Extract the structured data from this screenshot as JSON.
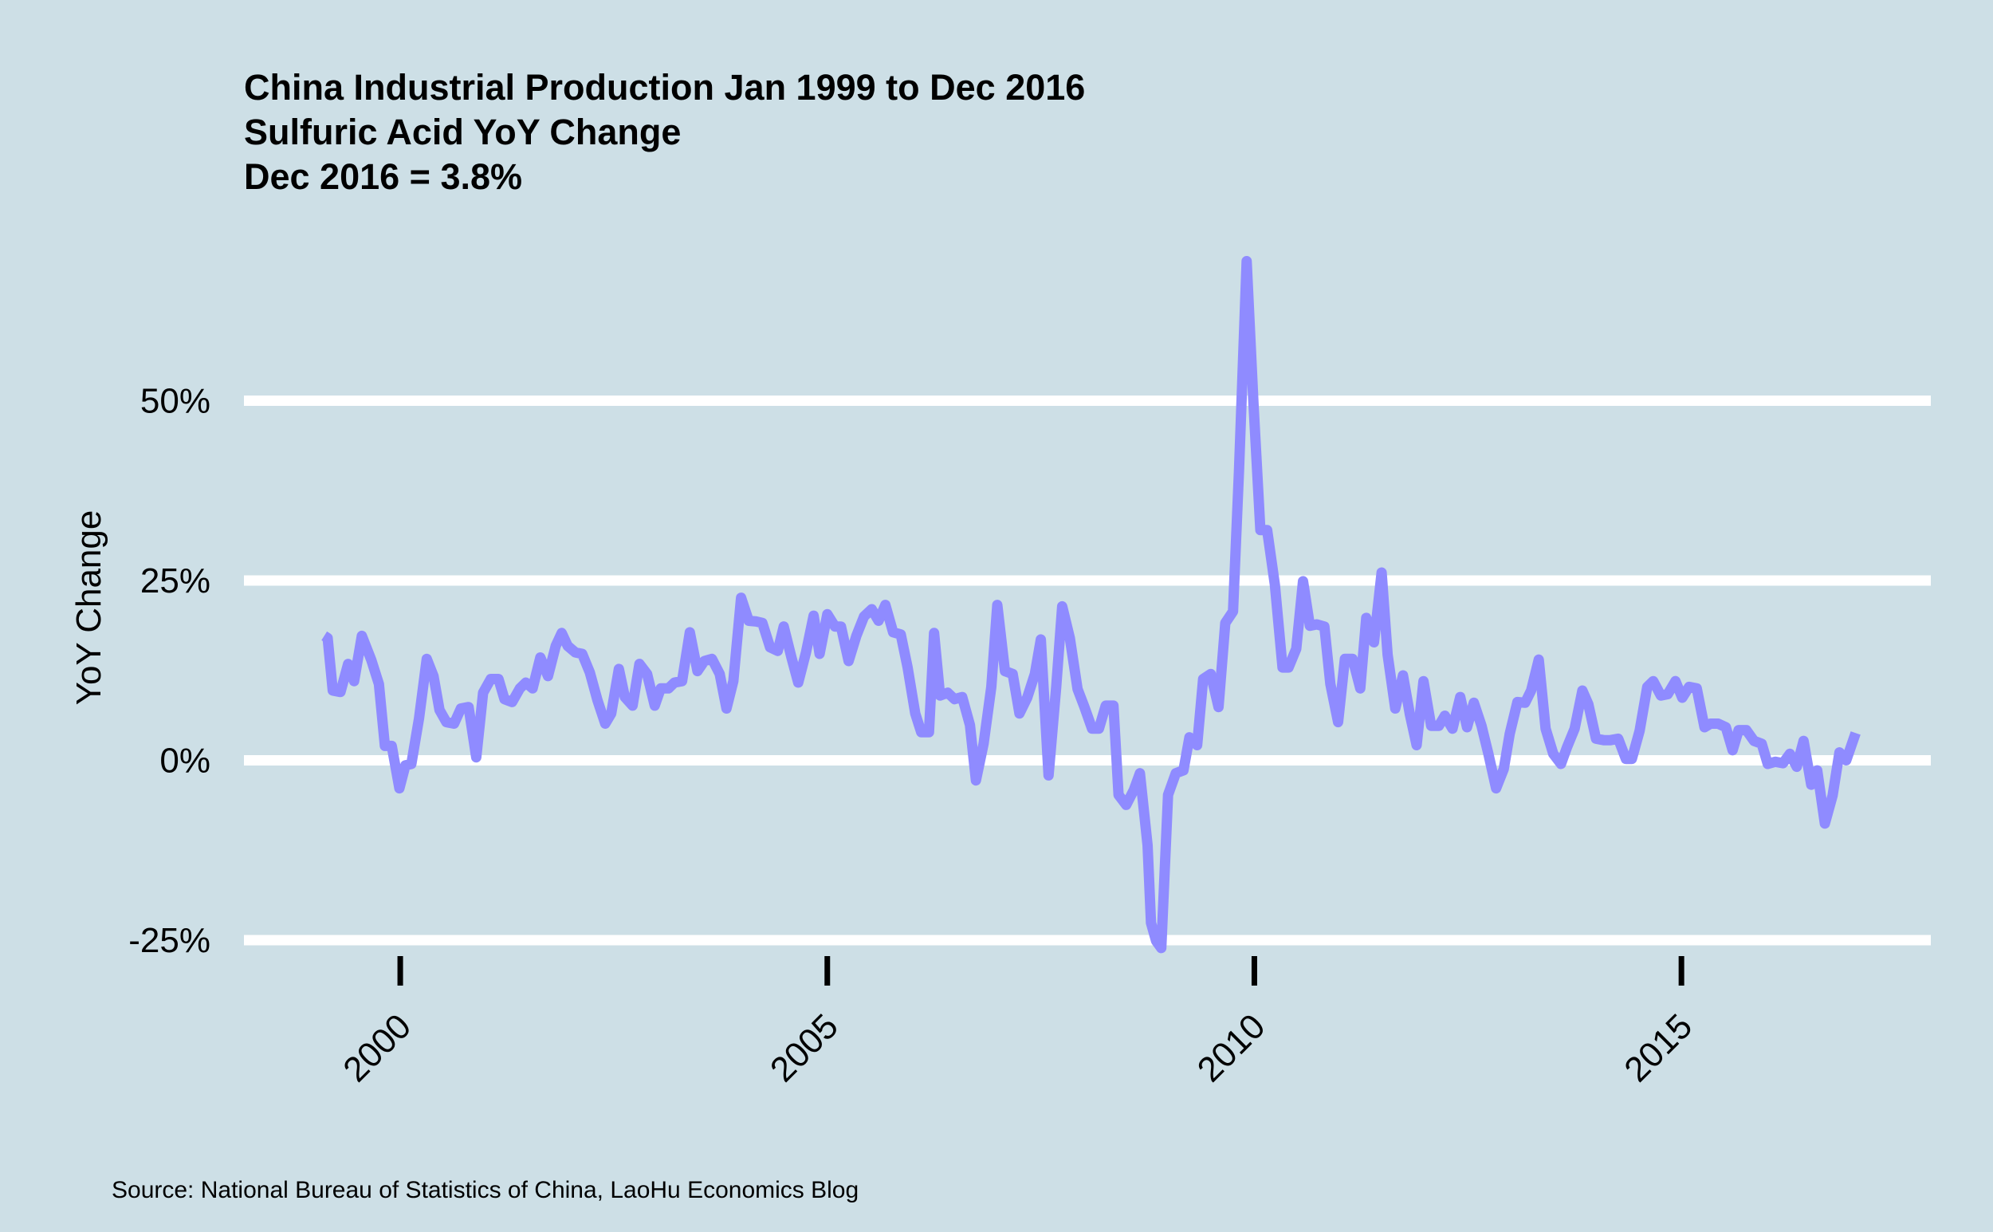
{
  "chart_data": {
    "type": "line",
    "title": [
      "China Industrial Production Jan 1999 to Dec 2016",
      "Sulfuric Acid YoY Change",
      "Dec 2016 = 3.8%"
    ],
    "ylabel": "YoY Change",
    "source": "Source: National Bureau of Statistics of China, LaoHu Economics Blog",
    "color": "#8f8bff",
    "grid": true,
    "xlim": [
      1998.17,
      2017.92
    ],
    "xticks": [
      2000,
      2005,
      2010,
      2015
    ],
    "ylim": [
      -27,
      72
    ],
    "yticks": [
      {
        "value": -25,
        "label": "-25%"
      },
      {
        "value": 0,
        "label": "0%"
      },
      {
        "value": 25,
        "label": "25%"
      },
      {
        "value": 50,
        "label": "50%"
      }
    ],
    "x": [
      1999.11,
      1999.15,
      1999.21,
      1999.3,
      1999.39,
      1999.46,
      1999.55,
      1999.66,
      1999.75,
      1999.82,
      1999.9,
      1999.99,
      2000.06,
      2000.13,
      2000.22,
      2000.31,
      2000.39,
      2000.46,
      2000.54,
      2000.63,
      2000.71,
      2000.8,
      2000.89,
      2000.97,
      2001.06,
      2001.15,
      2001.22,
      2001.31,
      2001.4,
      2001.47,
      2001.55,
      2001.64,
      2001.73,
      2001.82,
      2001.89,
      2001.96,
      2002.05,
      2002.13,
      2002.22,
      2002.31,
      2002.4,
      2002.47,
      2002.56,
      2002.63,
      2002.72,
      2002.8,
      2002.89,
      2002.98,
      2003.05,
      2003.14,
      2003.21,
      2003.3,
      2003.39,
      2003.48,
      2003.56,
      2003.65,
      2003.74,
      2003.82,
      2003.9,
      2003.99,
      2004.08,
      2004.17,
      2004.24,
      2004.33,
      2004.42,
      2004.49,
      2004.58,
      2004.66,
      2004.75,
      2004.84,
      2004.91,
      2005.0,
      2005.09,
      2005.16,
      2005.25,
      2005.34,
      2005.43,
      2005.52,
      2005.6,
      2005.68,
      2005.77,
      2005.86,
      2005.94,
      2006.03,
      2006.1,
      2006.19,
      2006.25,
      2006.32,
      2006.41,
      2006.49,
      2006.58,
      2006.67,
      2006.74,
      2006.83,
      2006.92,
      2006.99,
      2007.08,
      2007.17,
      2007.25,
      2007.34,
      2007.43,
      2007.5,
      2007.59,
      2007.68,
      2007.75,
      2007.84,
      2007.93,
      2008.01,
      2008.1,
      2008.18,
      2008.26,
      2008.35,
      2008.41,
      2008.5,
      2008.59,
      2008.66,
      2008.75,
      2008.79,
      2008.85,
      2008.91,
      2008.99,
      2009.08,
      2009.17,
      2009.24,
      2009.33,
      2009.4,
      2009.49,
      2009.58,
      2009.66,
      2009.75,
      2009.82,
      2009.91,
      2009.99,
      2010.07,
      2010.15,
      2010.24,
      2010.33,
      2010.4,
      2010.49,
      2010.57,
      2010.65,
      2010.73,
      2010.82,
      2010.89,
      2010.98,
      2011.06,
      2011.15,
      2011.24,
      2011.31,
      2011.4,
      2011.49,
      2011.56,
      2011.65,
      2011.74,
      2011.82,
      2011.9,
      2011.98,
      2012.07,
      2012.16,
      2012.23,
      2012.32,
      2012.41,
      2012.49,
      2012.57,
      2012.66,
      2012.74,
      2012.83,
      2012.92,
      2012.99,
      2013.08,
      2013.17,
      2013.24,
      2013.33,
      2013.41,
      2013.5,
      2013.59,
      2013.66,
      2013.75,
      2013.84,
      2013.91,
      2014.0,
      2014.09,
      2014.17,
      2014.26,
      2014.35,
      2014.42,
      2014.51,
      2014.6,
      2014.67,
      2014.76,
      2014.84,
      2014.93,
      2015.01,
      2015.09,
      2015.18,
      2015.27,
      2015.34,
      2015.43,
      2015.52,
      2015.6,
      2015.67,
      2015.76,
      2015.85,
      2015.94,
      2016.01,
      2016.1,
      2016.19,
      2016.27,
      2016.35,
      2016.43,
      2016.52,
      2016.59,
      2016.68,
      2016.77,
      2016.85,
      2016.93,
      2017.04
    ],
    "values": [
      17.3,
      17,
      9.7,
      9.5,
      13.4,
      11,
      17.3,
      14,
      10.6,
      2,
      2,
      -3.9,
      -0.7,
      -0.5,
      5.8,
      14.1,
      11.7,
      7,
      5.3,
      5.1,
      7.2,
      7.4,
      0.4,
      9.4,
      11.3,
      11.3,
      8.5,
      8.1,
      10,
      10.8,
      10,
      14.3,
      11.7,
      15.9,
      17.7,
      15.9,
      15,
      14.8,
      12.2,
      8.3,
      5.1,
      6.5,
      12.7,
      8.8,
      7.6,
      13.4,
      12,
      7.6,
      10,
      10,
      10.8,
      11,
      17.8,
      12.4,
      13.8,
      14.1,
      12,
      7.2,
      11,
      22.6,
      19.4,
      19.3,
      19.1,
      15.7,
      15.2,
      18.6,
      14.3,
      10.8,
      15,
      20.1,
      14.8,
      20.3,
      18.6,
      18.6,
      13.8,
      17.3,
      20,
      21,
      19.4,
      21.6,
      17.8,
      17.5,
      12.9,
      6.5,
      3.9,
      3.9,
      17.7,
      9,
      9.4,
      8.5,
      8.8,
      4.9,
      -2.8,
      2.3,
      10.2,
      21.6,
      12.4,
      12,
      6.5,
      8.7,
      12,
      16.8,
      -2.1,
      10.2,
      21.4,
      17,
      9.9,
      7.4,
      4.4,
      4.4,
      7.6,
      7.6,
      -4.8,
      -6.2,
      -4.1,
      -1.8,
      -11.8,
      -22.6,
      -25.1,
      -26.1,
      -4.8,
      -1.8,
      -1.4,
      3.2,
      2.1,
      11.3,
      12,
      7.4,
      19.1,
      20.7,
      40.3,
      69.4,
      49.5,
      32,
      32,
      24.4,
      12.9,
      12.9,
      15.5,
      24.9,
      18.7,
      18.9,
      18.6,
      10.6,
      5.3,
      14.1,
      14.1,
      10,
      19.8,
      16.4,
      26.1,
      14.7,
      7.2,
      11.8,
      6.4,
      2.1,
      11,
      4.8,
      4.8,
      6.2,
      4.4,
      8.8,
      4.6,
      8,
      4.8,
      0.9,
      -3.9,
      -1.2,
      3.7,
      8.1,
      8,
      9.7,
      14,
      4.4,
      0.9,
      -0.5,
      1.8,
      4.4,
      9.7,
      7.8,
      3,
      2.8,
      2.8,
      3,
      0.2,
      0.2,
      4.1,
      10.2,
      11,
      9,
      9.2,
      11,
      8.7,
      10.2,
      10,
      4.6,
      5.1,
      5.1,
      4.6,
      1.4,
      4.2,
      4.2,
      2.7,
      2.3,
      -0.5,
      -0.2,
      -0.4,
      0.9,
      -0.9,
      2.7,
      -3.4,
      -1.4,
      -8.8,
      -4.9,
      1.1,
      0,
      3.8
    ]
  }
}
